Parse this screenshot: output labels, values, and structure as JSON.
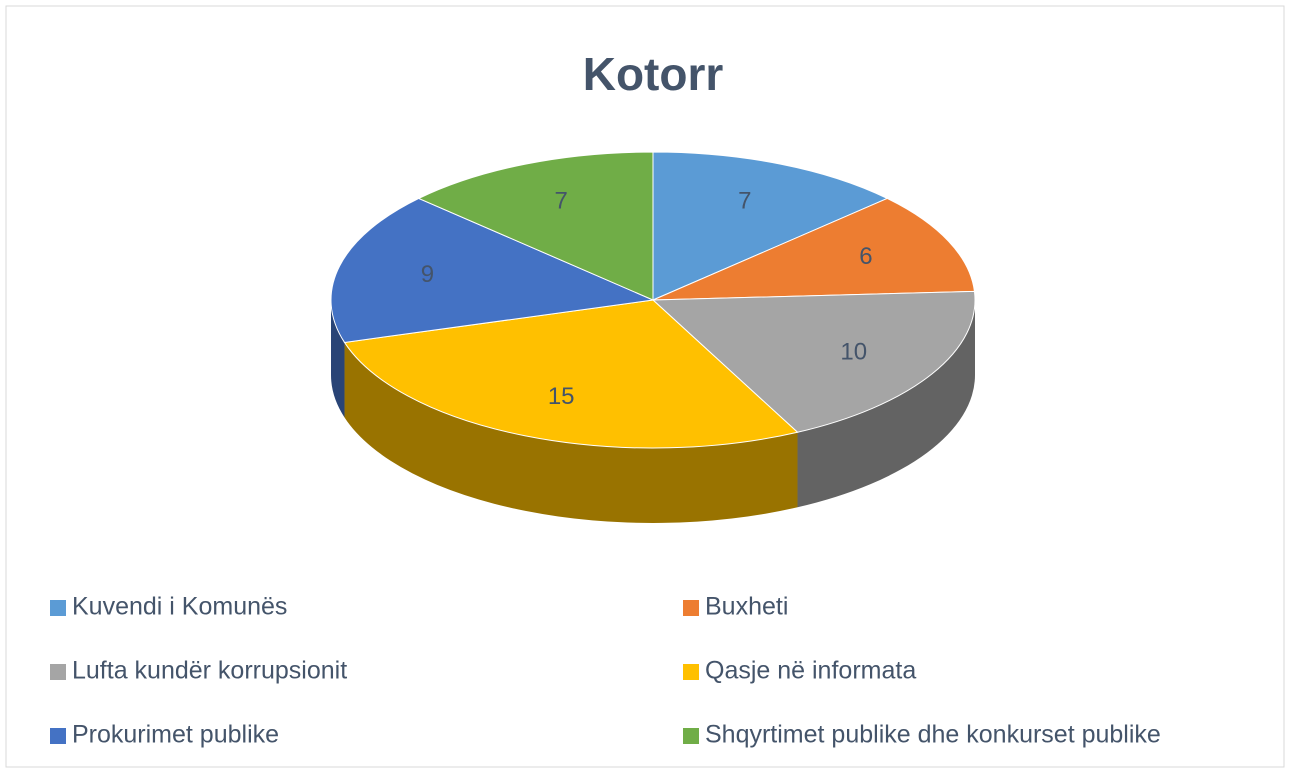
{
  "chart_data": {
    "type": "pie",
    "title": "Kotorr",
    "categories": [
      "Kuvendi i Komunës",
      "Buxheti",
      "Lufta kundër korrupsionit",
      "Qasje në informata",
      "Prokurimet publike",
      "Shqyrtimet publike dhe konkurset publike"
    ],
    "values": [
      7,
      6,
      10,
      15,
      9,
      7
    ],
    "colors": [
      "#5b9bd5",
      "#ed7d31",
      "#a5a5a5",
      "#ffc000",
      "#4472c4",
      "#70ad47"
    ],
    "legend": "bottom"
  }
}
